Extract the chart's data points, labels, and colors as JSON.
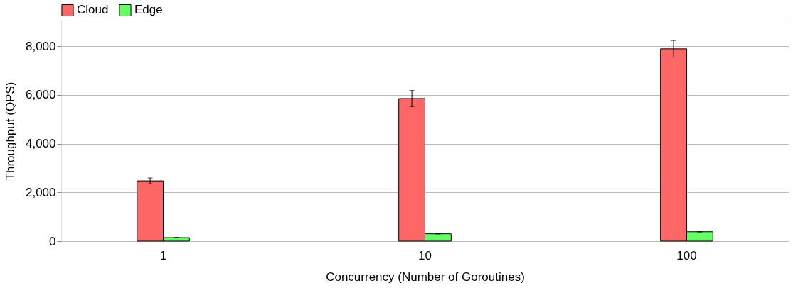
{
  "chart_data": {
    "type": "bar",
    "categories": [
      "1",
      "10",
      "100"
    ],
    "series": [
      {
        "name": "Cloud",
        "color": "#ff6666",
        "values": [
          2470,
          5850,
          7890
        ],
        "errors": [
          120,
          330,
          340
        ]
      },
      {
        "name": "Edge",
        "color": "#66ff66",
        "values": [
          145,
          300,
          385
        ],
        "errors": [
          10,
          10,
          10
        ]
      }
    ],
    "xlabel": "Concurrency (Number of Goroutines)",
    "ylabel": "Throughput (QPS)",
    "ylim": [
      0,
      9050
    ],
    "yticks": [
      {
        "value": 0,
        "label": "0"
      },
      {
        "value": 2000,
        "label": "2,000"
      },
      {
        "value": 4000,
        "label": "4,000"
      },
      {
        "value": 6000,
        "label": "6,000"
      },
      {
        "value": 8000,
        "label": "8,000"
      }
    ],
    "grid": "y",
    "legend": "top"
  }
}
